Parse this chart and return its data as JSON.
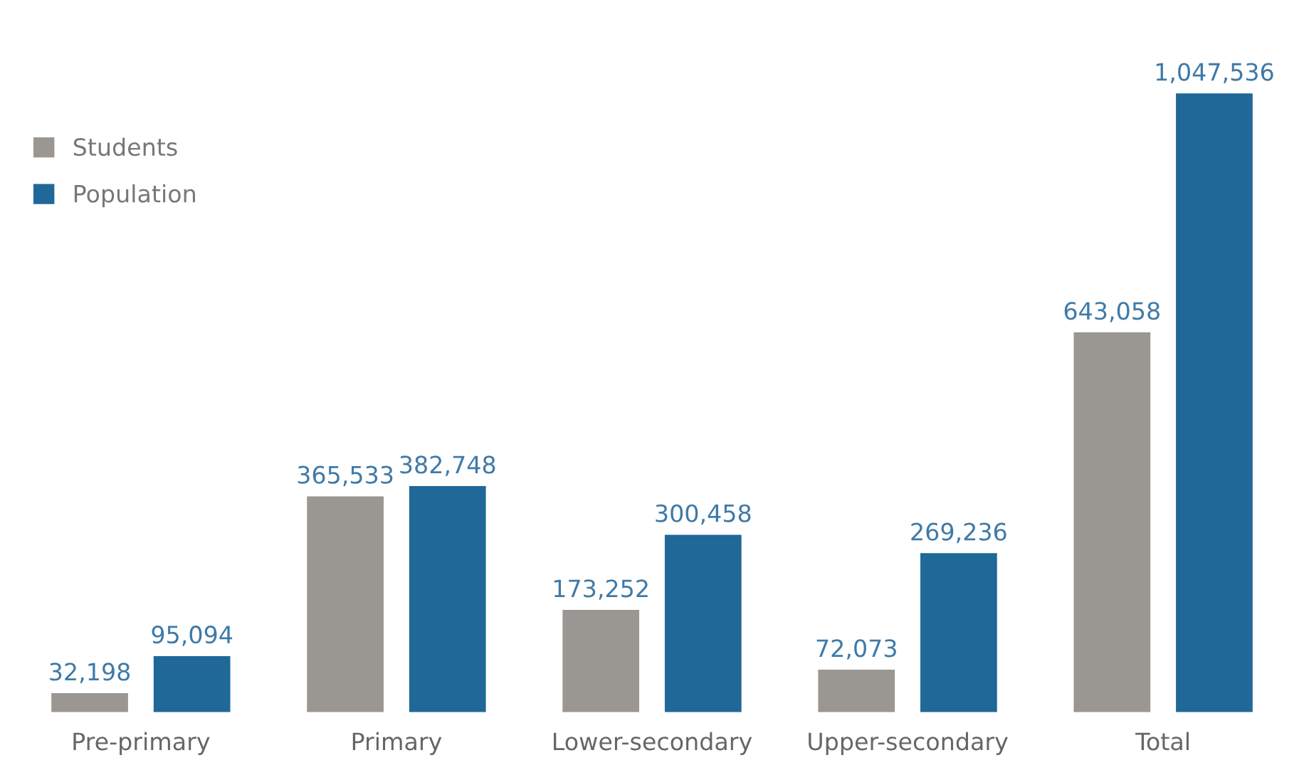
{
  "chart_data": {
    "type": "bar",
    "categories": [
      "Pre-primary",
      "Primary",
      "Lower-secondary",
      "Upper-secondary",
      "Total"
    ],
    "series": [
      {
        "name": "Students",
        "color": "#9a9792",
        "values": [
          32198,
          365533,
          173252,
          72073,
          643058
        ],
        "value_labels": [
          "32,198",
          "365,533",
          "173,252",
          "72,073",
          "643,058"
        ]
      },
      {
        "name": "Population",
        "color": "#1f6898",
        "values": [
          95094,
          382748,
          300458,
          269236,
          1047536
        ],
        "value_labels": [
          "95,094",
          "382,748",
          "300,458",
          "269,236",
          "1,047,536"
        ]
      }
    ],
    "legend": "top left",
    "grid": false
  }
}
